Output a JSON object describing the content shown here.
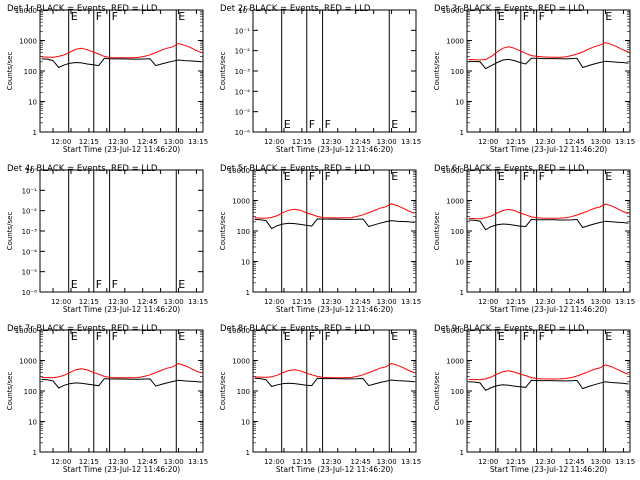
{
  "start_time_label": "Start Time (23-Jul-12 11:46:20)",
  "xticks": [
    "12:00",
    "12:15",
    "12:30",
    "12:45",
    "13:00",
    "13:15"
  ],
  "colors": {
    "events": "#000000",
    "lld": "#ff0000",
    "frame": "#000000"
  },
  "chart_data": [
    {
      "type": "line",
      "title": "Det 1r BLACK = Events, RED = LLD",
      "ylabel": "Counts/sec",
      "yscale": "log",
      "ylim": [
        1,
        10000
      ],
      "yticks": [
        "1",
        "10",
        "100",
        "1000",
        "10000"
      ],
      "markers": [
        "E",
        "F",
        "F",
        "E"
      ],
      "series": [
        {
          "color": "red",
          "y": [
            290,
            285,
            280,
            300,
            340,
            420,
            520,
            560,
            500,
            420,
            360,
            300,
            275,
            270,
            270,
            270,
            272,
            280,
            300,
            340,
            400,
            480,
            560,
            620,
            800,
            700,
            600,
            480,
            400
          ]
        },
        {
          "color": "black",
          "y": [
            250,
            245,
            220,
            130,
            160,
            180,
            190,
            185,
            170,
            160,
            150,
            260,
            250,
            250,
            250,
            248,
            246,
            245,
            248,
            252,
            150,
            170,
            190,
            210,
            230,
            220,
            215,
            210,
            200
          ]
        }
      ]
    },
    {
      "type": "line",
      "title": "Det 2r BLACK = Events, RED = LLD",
      "ylabel": "Counts/sec",
      "yscale": "log",
      "ylim": [
        1e-06,
        1
      ],
      "yticks": [
        "10⁰",
        "10⁻¹",
        "10⁻²",
        "10⁻³",
        "10⁻⁴",
        "10⁻⁵",
        "10⁻⁶"
      ],
      "markers": [
        "E",
        "F",
        "F",
        "E"
      ],
      "series": []
    },
    {
      "type": "line",
      "title": "Det 3r BLACK = Events, RED = LLD",
      "ylabel": "Counts/sec",
      "yscale": "log",
      "ylim": [
        1,
        10000
      ],
      "yticks": [
        "1",
        "10",
        "100",
        "1000",
        "10000"
      ],
      "markers": [
        "E",
        "F",
        "F",
        "E"
      ],
      "series": [
        {
          "color": "red",
          "y": [
            240,
            235,
            230,
            240,
            300,
            420,
            560,
            620,
            560,
            460,
            380,
            320,
            300,
            290,
            285,
            282,
            280,
            290,
            320,
            360,
            420,
            520,
            620,
            700,
            850,
            750,
            620,
            500,
            420
          ]
        },
        {
          "color": "black",
          "y": [
            210,
            205,
            200,
            120,
            150,
            190,
            230,
            240,
            220,
            190,
            170,
            260,
            260,
            255,
            255,
            255,
            252,
            250,
            255,
            260,
            130,
            150,
            170,
            190,
            210,
            200,
            195,
            190,
            180
          ]
        }
      ]
    },
    {
      "type": "line",
      "title": "Det 4r BLACK = Events, RED = LLD",
      "ylabel": "Counts/sec",
      "yscale": "log",
      "ylim": [
        1e-06,
        1
      ],
      "yticks": [
        "10⁰",
        "10⁻¹",
        "10⁻²",
        "10⁻³",
        "10⁻⁴",
        "10⁻⁵",
        "10⁻⁶"
      ],
      "markers": [
        "E",
        "F",
        "F",
        "E"
      ],
      "series": []
    },
    {
      "type": "line",
      "title": "Det 5r BLACK = Events, RED = LLD",
      "ylabel": "Counts/sec",
      "yscale": "log",
      "ylim": [
        1,
        10000
      ],
      "yticks": [
        "1",
        "10",
        "100",
        "1000",
        "10000"
      ],
      "markers": [
        "E",
        "F",
        "F",
        "E"
      ],
      "series": [
        {
          "color": "red",
          "y": [
            270,
            265,
            260,
            280,
            320,
            400,
            480,
            520,
            480,
            400,
            350,
            300,
            275,
            270,
            268,
            268,
            270,
            275,
            300,
            340,
            400,
            470,
            560,
            620,
            780,
            680,
            560,
            450,
            380
          ]
        },
        {
          "color": "black",
          "y": [
            240,
            235,
            220,
            120,
            150,
            170,
            180,
            175,
            165,
            155,
            145,
            250,
            245,
            245,
            245,
            243,
            240,
            240,
            242,
            248,
            140,
            160,
            180,
            200,
            220,
            210,
            205,
            200,
            190
          ]
        }
      ]
    },
    {
      "type": "line",
      "title": "Det 6r BLACK = Events, RED = LLD",
      "ylabel": "Counts/sec",
      "yscale": "log",
      "ylim": [
        1,
        10000
      ],
      "yticks": [
        "1",
        "10",
        "100",
        "1000",
        "10000"
      ],
      "markers": [
        "E",
        "F",
        "F",
        "E"
      ],
      "series": [
        {
          "color": "red",
          "y": [
            260,
            255,
            250,
            270,
            310,
            390,
            470,
            510,
            470,
            390,
            340,
            290,
            270,
            265,
            262,
            262,
            264,
            270,
            295,
            335,
            390,
            460,
            550,
            610,
            770,
            670,
            550,
            440,
            370
          ]
        },
        {
          "color": "black",
          "y": [
            230,
            225,
            210,
            110,
            140,
            160,
            170,
            165,
            155,
            145,
            140,
            240,
            235,
            235,
            235,
            233,
            230,
            230,
            232,
            238,
            130,
            150,
            170,
            190,
            210,
            200,
            195,
            190,
            180
          ]
        }
      ]
    },
    {
      "type": "line",
      "title": "Det 7r BLACK = Events, RED = LLD",
      "ylabel": "Counts/sec",
      "yscale": "log",
      "ylim": [
        1,
        10000
      ],
      "yticks": [
        "1",
        "10",
        "100",
        "1000",
        "10000"
      ],
      "markers": [
        "E",
        "F",
        "F",
        "E"
      ],
      "series": [
        {
          "color": "red",
          "y": [
            280,
            275,
            270,
            290,
            330,
            410,
            500,
            540,
            490,
            410,
            355,
            300,
            278,
            272,
            270,
            270,
            272,
            278,
            300,
            340,
            400,
            475,
            560,
            620,
            790,
            690,
            570,
            460,
            390
          ]
        },
        {
          "color": "black",
          "y": [
            240,
            235,
            215,
            125,
            155,
            175,
            185,
            180,
            168,
            158,
            148,
            255,
            248,
            248,
            248,
            246,
            244,
            243,
            246,
            250,
            145,
            165,
            185,
            205,
            225,
            215,
            210,
            205,
            195
          ]
        }
      ]
    },
    {
      "type": "line",
      "title": "Det 8r BLACK = Events, RED = LLD",
      "ylabel": "Counts/sec",
      "yscale": "log",
      "ylim": [
        1,
        10000
      ],
      "yticks": [
        "1",
        "10",
        "100",
        "1000",
        "10000"
      ],
      "markers": [
        "E",
        "F",
        "F",
        "E"
      ],
      "series": [
        {
          "color": "red",
          "y": [
            290,
            285,
            280,
            295,
            330,
            400,
            470,
            500,
            460,
            390,
            340,
            300,
            280,
            275,
            272,
            272,
            274,
            280,
            300,
            340,
            400,
            470,
            560,
            620,
            800,
            700,
            580,
            470,
            400
          ]
        },
        {
          "color": "black",
          "y": [
            260,
            255,
            235,
            140,
            160,
            175,
            180,
            175,
            165,
            155,
            150,
            260,
            255,
            255,
            255,
            252,
            250,
            250,
            252,
            256,
            150,
            170,
            190,
            210,
            230,
            220,
            215,
            210,
            200
          ]
        }
      ]
    },
    {
      "type": "line",
      "title": "Det 9r BLACK = Events, RED = LLD",
      "ylabel": "Counts/sec",
      "yscale": "log",
      "ylim": [
        1,
        10000
      ],
      "yticks": [
        "1",
        "10",
        "100",
        "1000",
        "10000"
      ],
      "markers": [
        "E",
        "F",
        "F",
        "E"
      ],
      "series": [
        {
          "color": "red",
          "y": [
            240,
            238,
            235,
            250,
            290,
            360,
            430,
            460,
            420,
            360,
            320,
            275,
            255,
            250,
            248,
            248,
            250,
            256,
            275,
            310,
            360,
            430,
            510,
            570,
            720,
            630,
            520,
            420,
            350
          ]
        },
        {
          "color": "black",
          "y": [
            200,
            198,
            185,
            105,
            130,
            150,
            160,
            155,
            145,
            138,
            132,
            225,
            220,
            220,
            220,
            218,
            215,
            215,
            218,
            222,
            120,
            140,
            160,
            180,
            200,
            190,
            185,
            180,
            170
          ]
        }
      ]
    }
  ]
}
